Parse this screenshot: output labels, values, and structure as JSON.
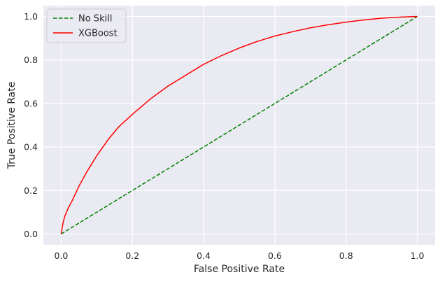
{
  "chart_data": {
    "type": "line",
    "title": "",
    "xlabel": "False Positive Rate",
    "ylabel": "True Positive Rate",
    "xlim": [
      -0.05,
      1.05
    ],
    "ylim": [
      -0.05,
      1.05
    ],
    "xticks": [
      "0.0",
      "0.2",
      "0.4",
      "0.6",
      "0.8",
      "1.0"
    ],
    "xtick_values": [
      0,
      0.2,
      0.4,
      0.6,
      0.8,
      1.0
    ],
    "yticks": [
      "0.0",
      "0.2",
      "0.4",
      "0.6",
      "0.8",
      "1.0"
    ],
    "ytick_values": [
      0,
      0.2,
      0.4,
      0.6,
      0.8,
      1.0
    ],
    "grid": true,
    "legend_position": "top-left",
    "series": [
      {
        "name": "No Skill",
        "color": "#008000",
        "style": "dashed",
        "x": [
          0,
          1
        ],
        "y": [
          0,
          1
        ]
      },
      {
        "name": "XGBoost",
        "color": "#ff0000",
        "style": "solid",
        "x": [
          0,
          0.005,
          0.01,
          0.02,
          0.03,
          0.05,
          0.07,
          0.1,
          0.13,
          0.16,
          0.2,
          0.25,
          0.3,
          0.35,
          0.4,
          0.45,
          0.5,
          0.55,
          0.6,
          0.65,
          0.7,
          0.75,
          0.8,
          0.85,
          0.9,
          0.95,
          1.0
        ],
        "y": [
          0,
          0.05,
          0.08,
          0.12,
          0.15,
          0.22,
          0.28,
          0.36,
          0.43,
          0.49,
          0.55,
          0.62,
          0.68,
          0.73,
          0.78,
          0.82,
          0.855,
          0.885,
          0.91,
          0.93,
          0.948,
          0.962,
          0.974,
          0.984,
          0.992,
          0.997,
          1.0
        ]
      }
    ]
  }
}
